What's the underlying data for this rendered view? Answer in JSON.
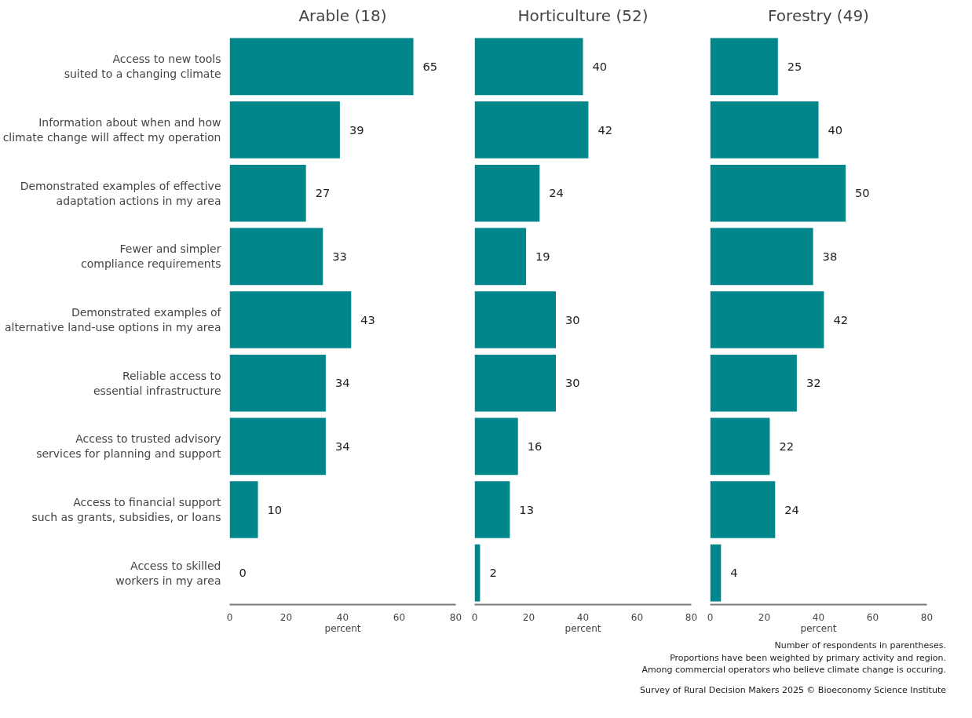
{
  "chart_data": [
    {
      "type": "bar",
      "orientation": "horizontal",
      "title": "Arable (18)",
      "xlabel": "percent",
      "categories": [
        "Access to new tools\nsuited to a changing climate",
        "Information about when and how\nclimate change will affect my operation",
        "Demonstrated examples of effective\nadaptation actions in my area",
        "Fewer and simpler\ncompliance requirements",
        "Demonstrated examples of\nalternative land-use options in my area",
        "Reliable access to\nessential infrastructure",
        "Access to trusted advisory\nservices for planning and support",
        "Access to financial support\nsuch as grants, subsidies, or loans",
        "Access to skilled\nworkers in my area"
      ],
      "values": [
        65,
        39,
        27,
        33,
        43,
        34,
        34,
        10,
        0
      ],
      "color": "#00868b",
      "xlim": [
        0,
        80
      ],
      "xticks": [
        0,
        20,
        40,
        60,
        80
      ],
      "data_labels": true,
      "grid": false
    },
    {
      "type": "bar",
      "orientation": "horizontal",
      "title": "Horticulture (52)",
      "xlabel": "percent",
      "categories": [
        null,
        null,
        null,
        null,
        null,
        null,
        null,
        null,
        null
      ],
      "values": [
        40,
        42,
        24,
        19,
        30,
        30,
        16,
        13,
        2
      ],
      "color": "#00868b",
      "xlim": [
        0,
        80
      ],
      "xticks": [
        0,
        20,
        40,
        60,
        80
      ],
      "data_labels": true,
      "grid": false,
      "tick_labels": "x"
    },
    {
      "type": "bar",
      "orientation": "horizontal",
      "title": "Forestry (49)",
      "xlabel": "percent",
      "categories": [
        null,
        null,
        null,
        null,
        null,
        null,
        null,
        null,
        null
      ],
      "values": [
        25,
        40,
        50,
        38,
        42,
        32,
        22,
        24,
        4
      ],
      "color": "#00868b",
      "xlim": [
        0,
        80
      ],
      "xticks": [
        0,
        20,
        40,
        60,
        80
      ],
      "data_labels": true,
      "grid": false,
      "tick_labels": "x",
      "annotations": [
        "Number of respondents in parentheses.\nProportions have been weighted by primary activity and region.\nAmong commercial operators who believe climate change is occuring.",
        "Survey of Rural Decision Makers 2025 © Bioeconomy Science Institute"
      ]
    }
  ]
}
